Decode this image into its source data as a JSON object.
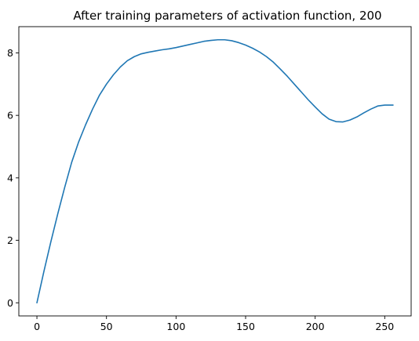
{
  "chart_data": {
    "type": "line",
    "title": "After training parameters of activation function, 200",
    "xlabel": "",
    "ylabel": "",
    "xlim": [
      -13,
      269
    ],
    "ylim": [
      -0.42,
      8.84
    ],
    "x_ticks": [
      0,
      50,
      100,
      150,
      200,
      250
    ],
    "y_ticks": [
      0,
      2,
      4,
      6,
      8
    ],
    "grid": false,
    "legend": "none",
    "series": [
      {
        "color": "#1f77b4",
        "x": [
          0,
          5,
          10,
          15,
          20,
          25,
          30,
          35,
          40,
          45,
          50,
          55,
          60,
          65,
          70,
          75,
          80,
          85,
          90,
          95,
          100,
          105,
          110,
          115,
          120,
          125,
          130,
          135,
          140,
          145,
          150,
          155,
          160,
          165,
          170,
          175,
          180,
          185,
          190,
          195,
          200,
          205,
          210,
          215,
          220,
          225,
          230,
          235,
          240,
          245,
          250,
          256
        ],
        "values": [
          0.0,
          1.0,
          1.95,
          2.85,
          3.7,
          4.5,
          5.15,
          5.7,
          6.2,
          6.65,
          7.0,
          7.3,
          7.55,
          7.75,
          7.88,
          7.97,
          8.02,
          8.06,
          8.1,
          8.13,
          8.17,
          8.22,
          8.27,
          8.32,
          8.37,
          8.4,
          8.42,
          8.42,
          8.39,
          8.33,
          8.25,
          8.15,
          8.03,
          7.88,
          7.7,
          7.48,
          7.25,
          7.0,
          6.75,
          6.5,
          6.27,
          6.05,
          5.88,
          5.8,
          5.79,
          5.85,
          5.95,
          6.08,
          6.2,
          6.3,
          6.33,
          6.33
        ]
      }
    ]
  }
}
